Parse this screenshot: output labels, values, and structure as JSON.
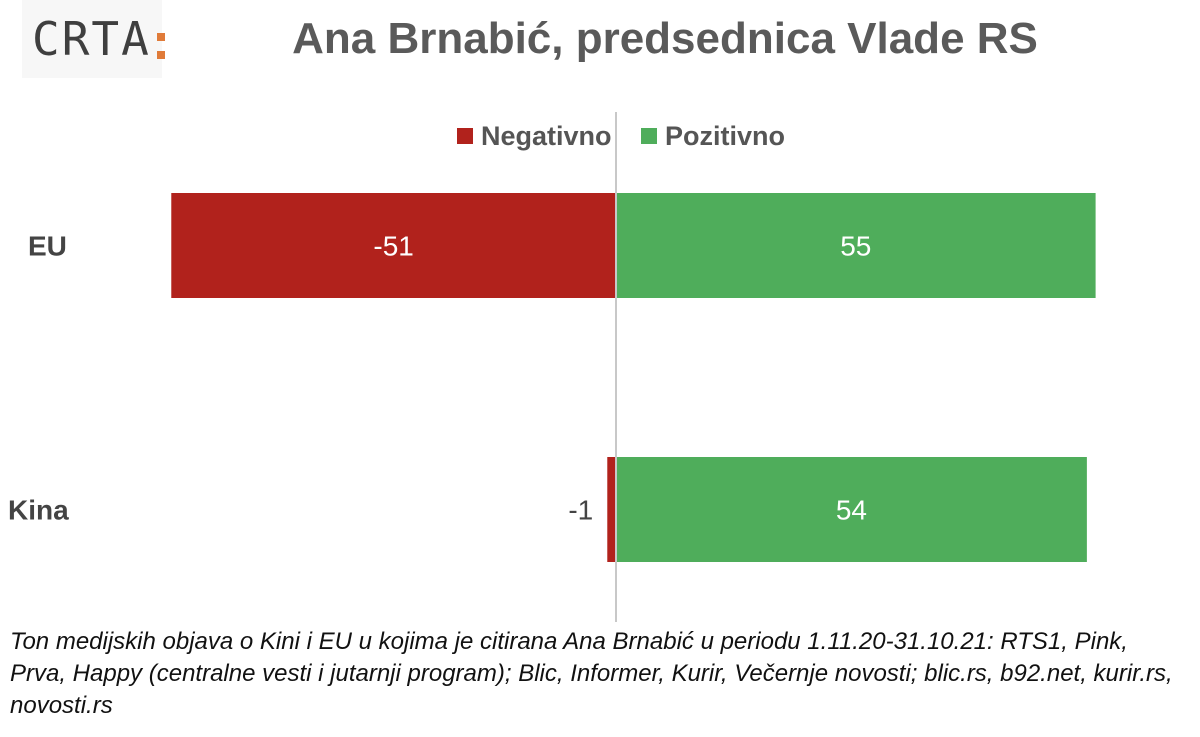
{
  "logo": {
    "text": "CRTA",
    "accent_color": "#e07b39"
  },
  "title": "Ana Brnabić, predsednica Vlade RS",
  "footnote": "Ton medijskih objava o Kini i EU u kojima je citirana Ana Brnabić u periodu 1.11.20-31.10.21: RTS1, Pink, Prva, Happy (centralne vesti i jutarnji program); Blic, Informer, Kurir, Večernje novosti; blic.rs, b92.net, kurir.rs, novosti.rs",
  "chart_data": {
    "type": "bar",
    "orientation": "horizontal",
    "stacked": "diverging",
    "title": "Ana Brnabić, predsednica Vlade RS",
    "categories": [
      "EU",
      "Kina"
    ],
    "series": [
      {
        "name": "Negativno",
        "color": "#b1221c",
        "values": [
          -51,
          -1
        ]
      },
      {
        "name": "Pozitivno",
        "color": "#4fad5b",
        "values": [
          55,
          54
        ]
      }
    ],
    "data_labels": [
      [
        "-51",
        "-1"
      ],
      [
        "55",
        "54"
      ]
    ],
    "legend_position": "top-center",
    "grid": false
  }
}
